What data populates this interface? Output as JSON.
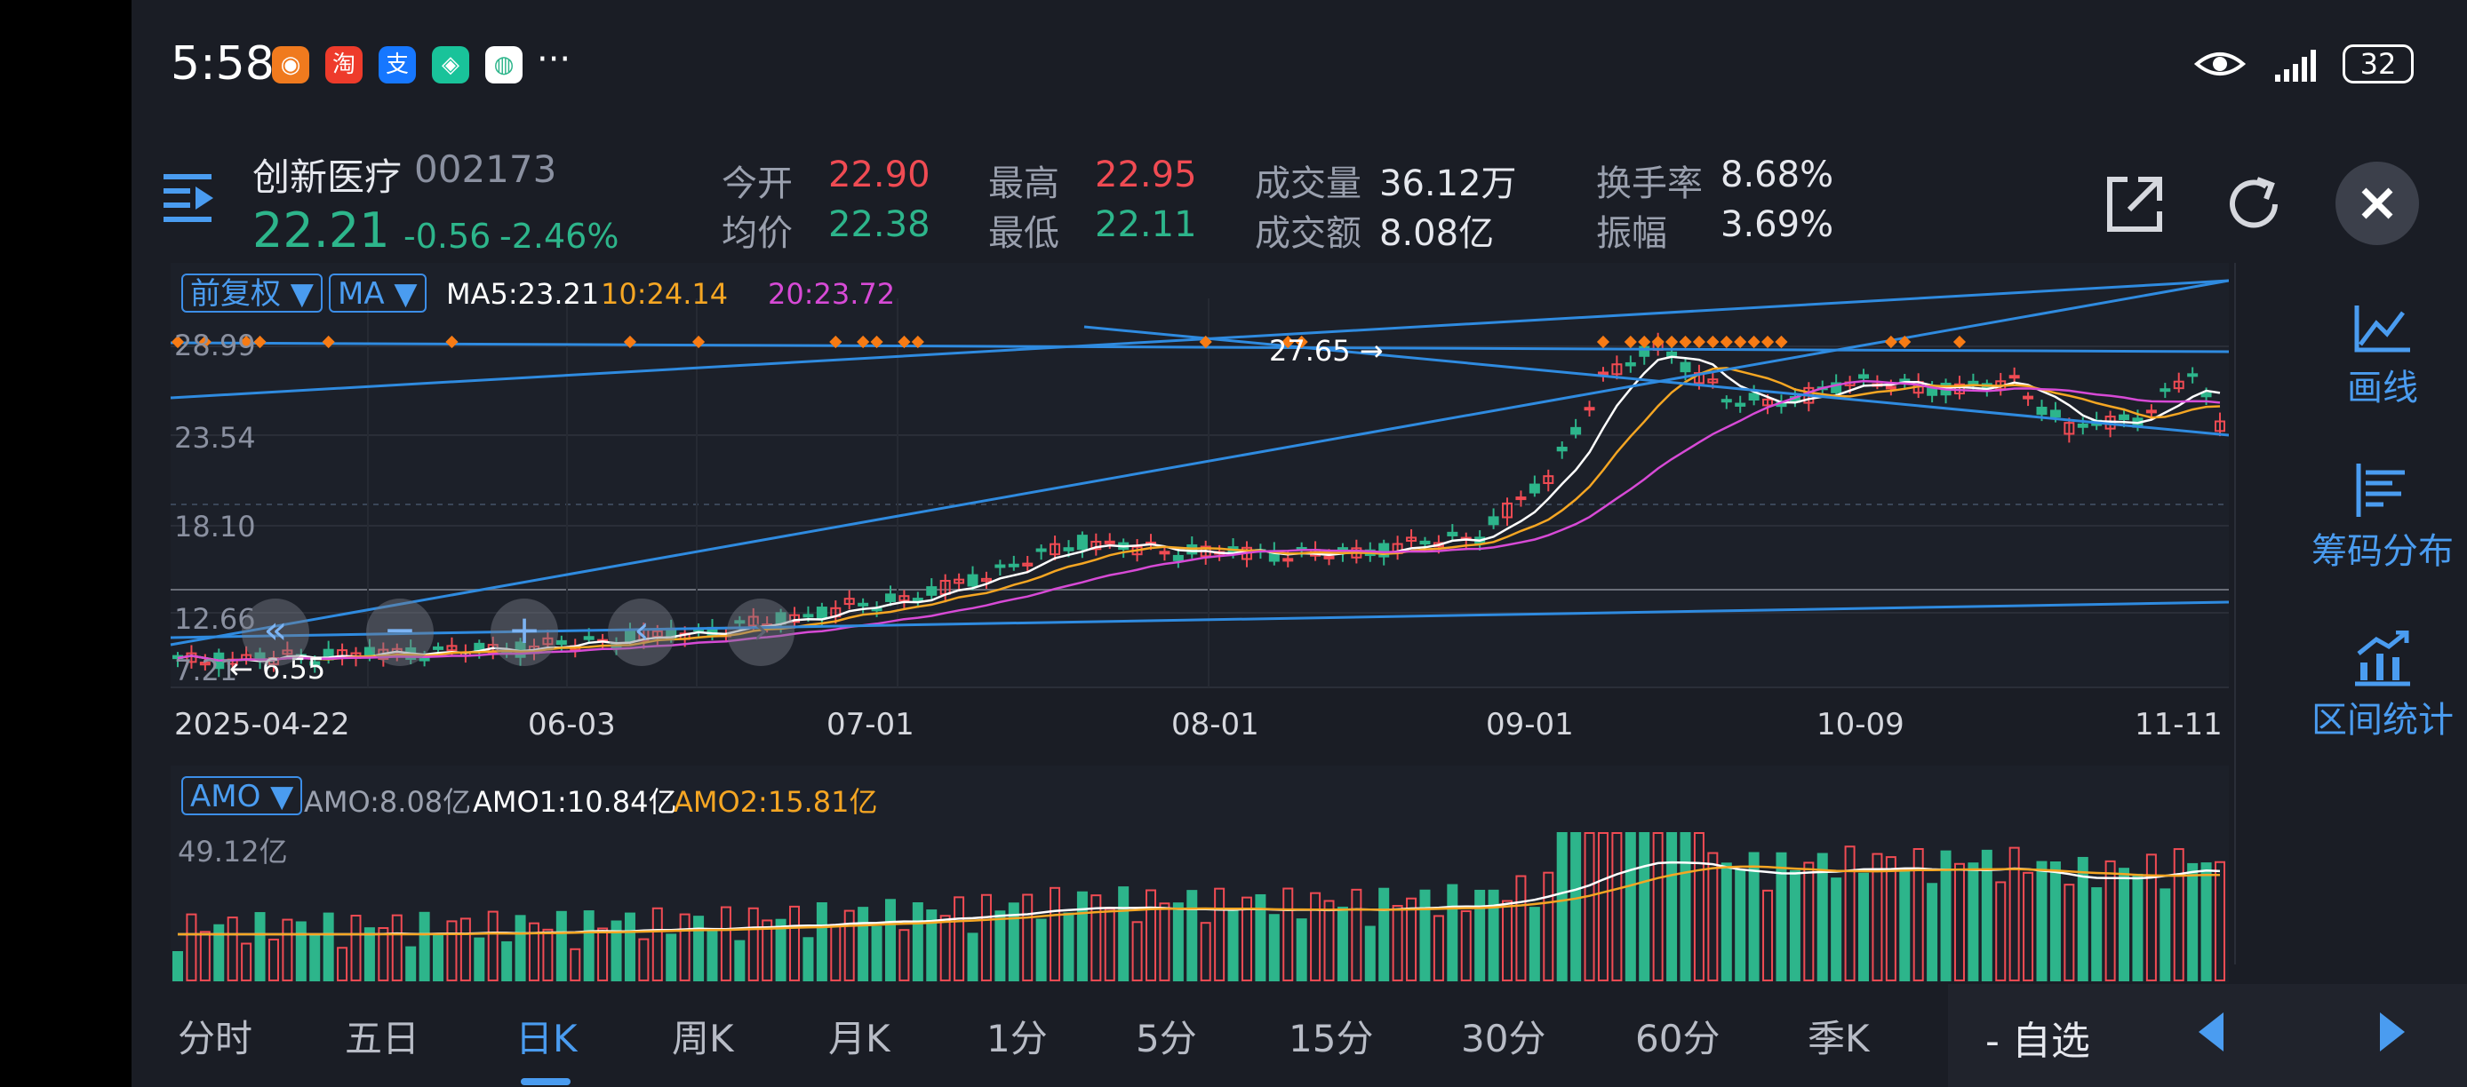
{
  "status_bar": {
    "time": "5:58",
    "app_icons": [
      {
        "name": "app-icon-1",
        "color": "#f07a1e",
        "glyph": "◉"
      },
      {
        "name": "taobao-icon",
        "color": "#ee3b2b",
        "glyph": "淘"
      },
      {
        "name": "alipay-icon",
        "color": "#1677ff",
        "glyph": "支"
      },
      {
        "name": "app-icon-4",
        "color": "#19c39a",
        "glyph": "◈"
      },
      {
        "name": "app-icon-5",
        "color": "#ffffff",
        "glyph": "◍"
      }
    ],
    "more": "···",
    "battery": "32"
  },
  "header": {
    "stock_name": "创新医疗",
    "stock_code": "002173",
    "price": "22.21",
    "change": "-0.56",
    "change_pct": "-2.46%",
    "quotes": [
      {
        "label": "今开",
        "value": "22.90",
        "color": "red"
      },
      {
        "label": "均价",
        "value": "22.38",
        "color": "green"
      },
      {
        "label": "最高",
        "value": "22.95",
        "color": "red"
      },
      {
        "label": "最低",
        "value": "22.11",
        "color": "green"
      },
      {
        "label": "成交量",
        "value": "36.12万",
        "color": "white"
      },
      {
        "label": "成交额",
        "value": "8.08亿",
        "color": "white"
      },
      {
        "label": "换手率",
        "value": "8.68%",
        "color": "white"
      },
      {
        "label": "振幅",
        "value": "3.69%",
        "color": "white"
      }
    ]
  },
  "kline": {
    "adjust_select": "前复权 ▼",
    "indicator_select": "MA ▼",
    "ma5": "MA5:23.21",
    "ma10": "10:24.14",
    "ma20": "20:23.72",
    "price_labels": [
      "28.99",
      "23.54",
      "18.10",
      "12.66",
      "7.21"
    ],
    "high_marker": "27.65",
    "low_marker": "6.55",
    "dates": [
      "2025-04-22",
      "06-03",
      "07-01",
      "08-01",
      "09-01",
      "10-09",
      "11-11"
    ],
    "colors": {
      "up": "#f04b53",
      "down": "#2db58b",
      "ma5": "#ffffff",
      "ma10": "#f5a623",
      "ma20": "#d74ad6",
      "trendline": "#2f8be0"
    }
  },
  "controls": [
    "«",
    "−",
    "+",
    "‹",
    "›"
  ],
  "volume": {
    "indicator_select": "AMO ▼",
    "amo": "AMO:8.08亿",
    "amo1": "AMO1:10.84亿",
    "amo2": "AMO2:15.81亿",
    "max_label": "49.12亿"
  },
  "tools": [
    {
      "label": "画线",
      "icon": "draw-line-icon"
    },
    {
      "label": "筹码分布",
      "icon": "chip-distribution-icon"
    },
    {
      "label": "区间统计",
      "icon": "interval-stats-icon"
    }
  ],
  "tabs": [
    "分时",
    "五日",
    "日K",
    "周K",
    "月K",
    "1分",
    "5分",
    "15分",
    "30分",
    "60分",
    "季K"
  ],
  "active_tab": "日K",
  "favorite": "- 自选"
}
